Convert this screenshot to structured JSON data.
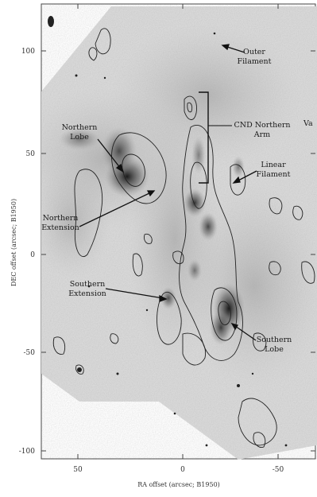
{
  "figure": {
    "xlabel": "RA offset (arcsec; B1950)",
    "ylabel": "DEC offset (arcsec; B1950)",
    "x_ticks": [
      "50",
      "0",
      "-50"
    ],
    "y_ticks": [
      "100",
      "50",
      "0",
      "-50",
      "-100"
    ],
    "annotations": {
      "outer_filament": [
        "Outer",
        "Filament"
      ],
      "cnd_northern_arm": [
        "CND Northern",
        "Arm"
      ],
      "northern_lobe": [
        "Northern",
        "Lobe"
      ],
      "linear_filament": [
        "Linear",
        "Filament"
      ],
      "northern_extension": [
        "Northern",
        "Extension"
      ],
      "southern_extension": [
        "Southern",
        "Extension"
      ],
      "southern_lobe": [
        "Southern",
        "Lobe"
      ],
      "va": "Va"
    }
  },
  "chart_data": {
    "type": "image",
    "x_axis": {
      "label": "RA offset (arcsec; B1950)",
      "range": [
        70,
        -65
      ],
      "ticks": [
        50,
        0,
        -50
      ]
    },
    "y_axis": {
      "label": "DEC offset (arcsec; B1950)",
      "range": [
        -105,
        125
      ],
      "ticks": [
        100,
        50,
        0,
        -50,
        -100
      ]
    }
  }
}
